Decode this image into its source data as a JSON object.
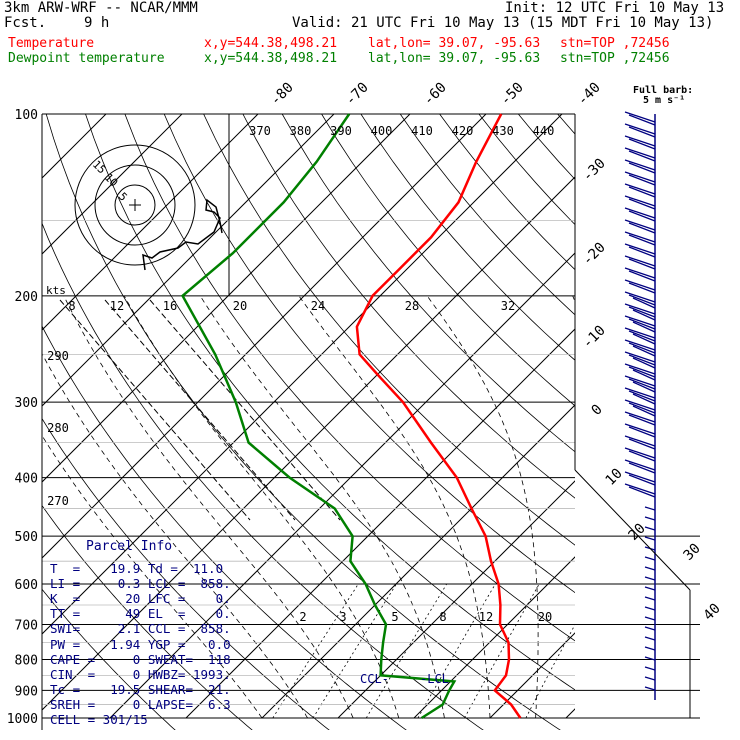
{
  "header": {
    "model": "3km ARW-WRF -- NCAR/MMM",
    "init": "Init: 12 UTC Fri 10 May 13",
    "fcst_label": "Fcst.",
    "fcst_value": "9 h",
    "valid": "Valid: 21 UTC Fri 10 May 13 (15 MDT Fri 10 May 13)",
    "temp_line": {
      "label": "Temperature",
      "xy": "x,y=544.38,498.21",
      "latlon": "lat,lon= 39.07, -95.63",
      "stn": "stn=TOP ,72456",
      "color": "#ff0000"
    },
    "dew_line": {
      "label": "Dewpoint temperature",
      "xy": "x,y=544.38,498.21",
      "latlon": "lat,lon= 39.07, -95.63",
      "stn": "stn=TOP ,72456",
      "color": "#008000"
    }
  },
  "barb_legend": {
    "line1": "Full barb:",
    "line2": "5 m s⁻¹"
  },
  "hodograph": {
    "axis_label": "kts",
    "rings": [
      "5",
      "10",
      "15"
    ]
  },
  "parcel": {
    "title": "Parcel Info",
    "rows": [
      "T  =    19.9 Td =  11.0",
      "LI =     0.3 LCL =  858.",
      "K  =      20 LFC =    0.",
      "TT =      49 EL  =    0.",
      "SWI=     2.1 CCL =  858.",
      "PW =    1.94 YGP =   0.0",
      "CAPE =     0 SWEAT=  118",
      "CIN  =     0 HWBZ= 1993.",
      "Tc =    19.5 SHEAR=  21.",
      "SREH =     0 LAPSE=  6.3",
      "CELL = 301/15"
    ]
  },
  "levels_labels": {
    "ccl": "CCL",
    "lcl": "LCL"
  },
  "chart_data": {
    "type": "line",
    "title": "",
    "xlabel": "",
    "ylabel": "",
    "y_scale": "log",
    "pressure_levels": [
      "100",
      "200",
      "300",
      "400",
      "500",
      "600",
      "700",
      "800",
      "900",
      "1000"
    ],
    "isotherm_labels": [
      "-80",
      "-70",
      "-60",
      "-50",
      "-40",
      "-30",
      "-20",
      "-10",
      "0",
      "10",
      "20",
      "30",
      "40"
    ],
    "theta_labels": [
      "370",
      "380",
      "390",
      "400",
      "410",
      "420",
      "430",
      "440"
    ],
    "theta_side_labels": [
      "290",
      "280",
      "270"
    ],
    "mixing_ratio_labels_upper": [
      "8",
      "12",
      "16",
      "20",
      "24",
      "28",
      "32"
    ],
    "mixing_ratio_labels_lower": [
      "2",
      "3",
      "5",
      "8",
      "12",
      "20"
    ],
    "series": [
      {
        "name": "Temperature",
        "color": "#ff0000",
        "points_p_t": [
          [
            1000,
            24
          ],
          [
            950,
            21
          ],
          [
            900,
            17
          ],
          [
            850,
            16.5
          ],
          [
            800,
            14.8
          ],
          [
            750,
            12.5
          ],
          [
            700,
            9
          ],
          [
            650,
            6.5
          ],
          [
            600,
            3.5
          ],
          [
            550,
            -0.5
          ],
          [
            500,
            -4.5
          ],
          [
            450,
            -10
          ],
          [
            400,
            -16
          ],
          [
            350,
            -24
          ],
          [
            300,
            -33
          ],
          [
            270,
            -40
          ],
          [
            250,
            -45
          ],
          [
            225,
            -49
          ],
          [
            200,
            -51
          ],
          [
            180,
            -51
          ],
          [
            160,
            -51
          ],
          [
            140,
            -52
          ],
          [
            120,
            -55
          ],
          [
            100,
            -58
          ]
        ]
      },
      {
        "name": "Dewpoint temperature",
        "color": "#008000",
        "points_p_t": [
          [
            1000,
            11
          ],
          [
            950,
            12
          ],
          [
            900,
            11
          ],
          [
            870,
            10.5
          ],
          [
            850,
            0
          ],
          [
            800,
            -2
          ],
          [
            750,
            -4
          ],
          [
            700,
            -6
          ],
          [
            650,
            -10
          ],
          [
            600,
            -14
          ],
          [
            550,
            -19
          ],
          [
            500,
            -22
          ],
          [
            450,
            -28
          ],
          [
            400,
            -38
          ],
          [
            350,
            -48
          ],
          [
            300,
            -55
          ],
          [
            250,
            -64
          ],
          [
            200,
            -76
          ],
          [
            170,
            -75
          ],
          [
            140,
            -75
          ],
          [
            120,
            -76
          ],
          [
            100,
            -78
          ]
        ]
      }
    ]
  }
}
